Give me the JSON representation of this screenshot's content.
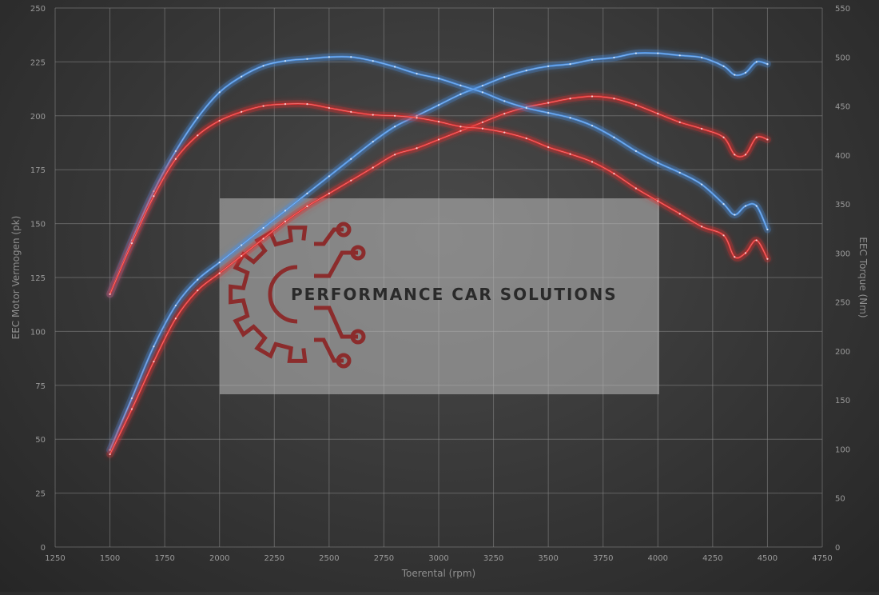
{
  "chart_data": {
    "type": "line",
    "xlabel": "Toerental (rpm)",
    "ylabel_left": "EEC Motor Vermogen (pk)",
    "ylabel_right": "EEC Torque (Nm)",
    "xlim": [
      1250,
      4750
    ],
    "ylim_left": [
      0,
      250
    ],
    "ylim_right": [
      0,
      550
    ],
    "x_ticks": [
      1250,
      1500,
      1750,
      2000,
      2250,
      2500,
      2750,
      3000,
      3250,
      3500,
      3750,
      4000,
      4250,
      4500,
      4750
    ],
    "y_ticks_left": [
      0,
      25,
      50,
      75,
      100,
      125,
      150,
      175,
      200,
      225,
      250
    ],
    "y_ticks_right": [
      0,
      50,
      100,
      150,
      200,
      250,
      300,
      350,
      400,
      450,
      500,
      550
    ],
    "grid": true,
    "series": [
      {
        "axis": "left",
        "color": "#4a90e2",
        "points": [
          [
            1500,
            45
          ],
          [
            1600,
            69
          ],
          [
            1700,
            93
          ],
          [
            1800,
            112
          ],
          [
            1900,
            124
          ],
          [
            2000,
            132
          ],
          [
            2100,
            140
          ],
          [
            2200,
            148
          ],
          [
            2300,
            156
          ],
          [
            2400,
            164
          ],
          [
            2500,
            172
          ],
          [
            2600,
            180
          ],
          [
            2700,
            188
          ],
          [
            2800,
            195
          ],
          [
            2900,
            200
          ],
          [
            3000,
            205
          ],
          [
            3100,
            210
          ],
          [
            3200,
            214
          ],
          [
            3300,
            218
          ],
          [
            3400,
            221
          ],
          [
            3500,
            223
          ],
          [
            3600,
            224
          ],
          [
            3700,
            226
          ],
          [
            3800,
            227
          ],
          [
            3900,
            229
          ],
          [
            4000,
            229
          ],
          [
            4100,
            228
          ],
          [
            4200,
            227
          ],
          [
            4300,
            223
          ],
          [
            4350,
            219
          ],
          [
            4400,
            220
          ],
          [
            4450,
            225
          ],
          [
            4500,
            224
          ]
        ]
      },
      {
        "axis": "left",
        "color": "#e03030",
        "points": [
          [
            1500,
            43
          ],
          [
            1600,
            64
          ],
          [
            1700,
            86
          ],
          [
            1800,
            106
          ],
          [
            1900,
            119
          ],
          [
            2000,
            127
          ],
          [
            2100,
            135
          ],
          [
            2200,
            143
          ],
          [
            2300,
            151
          ],
          [
            2400,
            158
          ],
          [
            2500,
            164
          ],
          [
            2600,
            170
          ],
          [
            2700,
            176
          ],
          [
            2800,
            182
          ],
          [
            2900,
            185
          ],
          [
            3000,
            189
          ],
          [
            3100,
            193
          ],
          [
            3200,
            197
          ],
          [
            3300,
            201
          ],
          [
            3400,
            204
          ],
          [
            3500,
            206
          ],
          [
            3600,
            208
          ],
          [
            3700,
            209
          ],
          [
            3800,
            208
          ],
          [
            3900,
            205
          ],
          [
            4000,
            201
          ],
          [
            4100,
            197
          ],
          [
            4200,
            194
          ],
          [
            4300,
            190
          ],
          [
            4350,
            182
          ],
          [
            4400,
            182
          ],
          [
            4450,
            190
          ],
          [
            4500,
            189
          ]
        ]
      },
      {
        "axis": "right",
        "color": "#4a90e2",
        "points": [
          [
            1500,
            258
          ],
          [
            1600,
            313
          ],
          [
            1700,
            363
          ],
          [
            1800,
            404
          ],
          [
            1900,
            438
          ],
          [
            2000,
            464
          ],
          [
            2100,
            480
          ],
          [
            2200,
            491
          ],
          [
            2300,
            496
          ],
          [
            2400,
            498
          ],
          [
            2500,
            500
          ],
          [
            2600,
            500
          ],
          [
            2700,
            496
          ],
          [
            2800,
            490
          ],
          [
            2900,
            483
          ],
          [
            3000,
            478
          ],
          [
            3100,
            471
          ],
          [
            3200,
            464
          ],
          [
            3300,
            455
          ],
          [
            3400,
            448
          ],
          [
            3500,
            443
          ],
          [
            3600,
            438
          ],
          [
            3700,
            430
          ],
          [
            3800,
            418
          ],
          [
            3900,
            404
          ],
          [
            4000,
            392
          ],
          [
            4100,
            382
          ],
          [
            4200,
            370
          ],
          [
            4300,
            350
          ],
          [
            4350,
            339
          ],
          [
            4400,
            348
          ],
          [
            4450,
            348
          ],
          [
            4500,
            324
          ]
        ]
      },
      {
        "axis": "right",
        "color": "#e03030",
        "points": [
          [
            1500,
            258
          ],
          [
            1600,
            310
          ],
          [
            1700,
            358
          ],
          [
            1800,
            396
          ],
          [
            1900,
            420
          ],
          [
            2000,
            435
          ],
          [
            2100,
            444
          ],
          [
            2200,
            450
          ],
          [
            2300,
            452
          ],
          [
            2400,
            452
          ],
          [
            2500,
            448
          ],
          [
            2600,
            444
          ],
          [
            2700,
            441
          ],
          [
            2800,
            440
          ],
          [
            2900,
            438
          ],
          [
            3000,
            434
          ],
          [
            3100,
            429
          ],
          [
            3200,
            427
          ],
          [
            3300,
            423
          ],
          [
            3400,
            417
          ],
          [
            3500,
            408
          ],
          [
            3600,
            401
          ],
          [
            3700,
            393
          ],
          [
            3800,
            381
          ],
          [
            3900,
            366
          ],
          [
            4000,
            353
          ],
          [
            4100,
            340
          ],
          [
            4200,
            327
          ],
          [
            4300,
            318
          ],
          [
            4350,
            296
          ],
          [
            4400,
            300
          ],
          [
            4450,
            313
          ],
          [
            4500,
            294
          ]
        ]
      }
    ]
  },
  "watermark": {
    "text": "PERFORMANCE CAR SOLUTIONS",
    "logo_icon": "gear-circuit-icon",
    "logo_color": "#8b2c2c"
  }
}
